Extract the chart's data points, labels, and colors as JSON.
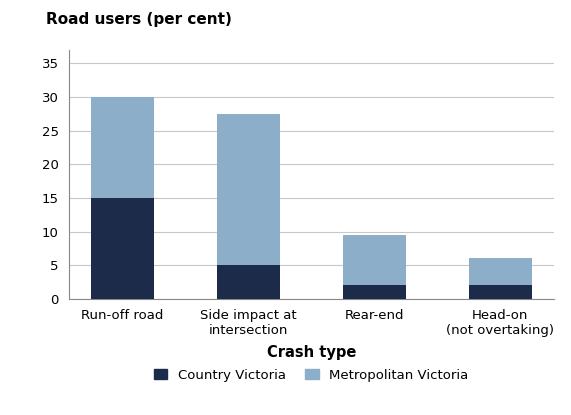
{
  "categories": [
    "Run-off road",
    "Side impact at\nintersection",
    "Rear-end",
    "Head-on\n(not overtaking)"
  ],
  "country_victoria": [
    15,
    5,
    2,
    2
  ],
  "metro_victoria": [
    15,
    22.5,
    7.5,
    4
  ],
  "country_color": "#1c2b4a",
  "metro_color": "#8daec8",
  "title": "Road users (per cent)",
  "xlabel": "Crash type",
  "ylim": [
    0,
    37
  ],
  "yticks": [
    0,
    5,
    10,
    15,
    20,
    25,
    30,
    35
  ],
  "legend_country": "Country Victoria",
  "legend_metro": "Metropolitan Victoria",
  "bar_width": 0.5,
  "grid_color": "#c8c8c8"
}
